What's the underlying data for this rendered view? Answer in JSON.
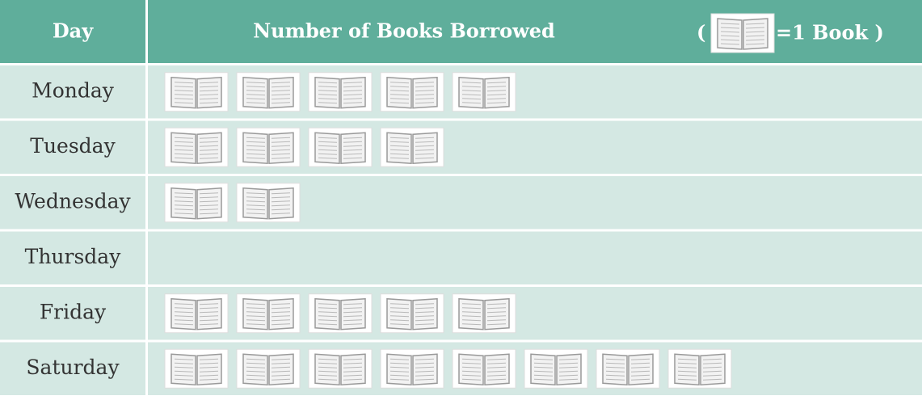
{
  "chart_data": {
    "type": "pictograph",
    "column_headers": [
      "Day",
      "Number of Books Borrowed"
    ],
    "key_open": "(",
    "key_label": "=1 Book )",
    "categories": [
      "Monday",
      "Tuesday",
      "Wednesday",
      "Thursday",
      "Friday",
      "Saturday"
    ],
    "values": [
      5,
      4,
      2,
      0,
      5,
      8
    ],
    "header_color": "#5fae9b",
    "row_color": "#d4e8e3"
  }
}
